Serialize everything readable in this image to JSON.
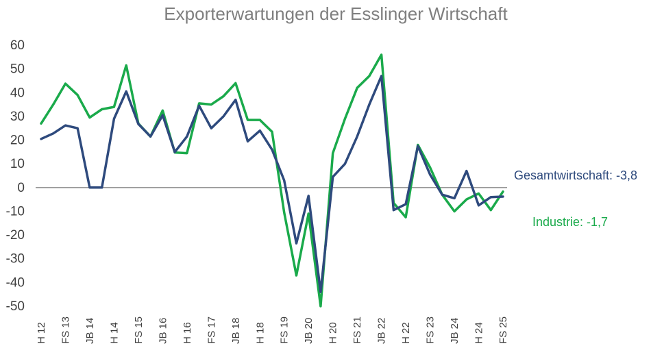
{
  "chart_data": {
    "type": "line",
    "title": "Exporterwartungen der Esslinger Wirtschaft",
    "xlabel": "",
    "ylabel": "",
    "ylim": [
      -50,
      60
    ],
    "yticks": [
      60,
      50,
      40,
      30,
      20,
      10,
      0,
      -10,
      -20,
      -30,
      -40,
      -50
    ],
    "ytick_labels": [
      "60",
      "50",
      "40",
      "30",
      "20",
      "10",
      "0",
      "-10",
      "-20",
      "-30",
      "-40",
      "-50"
    ],
    "grid": false,
    "legend": "none",
    "x_tick_labels": [
      "H 12",
      "FS 13",
      "JB 14",
      "H 14",
      "FS 15",
      "JB 16",
      "H 16",
      "FS 17",
      "JB 18",
      "H 18",
      "FS 19",
      "JB 20",
      "H 20",
      "FS 21",
      "JB 22",
      "H 22",
      "FS 23",
      "JB 24",
      "H 24",
      "FS 25"
    ],
    "x_tick_every": 2,
    "series": [
      {
        "name": "Gesamtwirtschaft",
        "label": "Gesamtwirtschaft: -3,8",
        "color": "#2e4a7d",
        "values": [
          20.5,
          22.8,
          26.2,
          25,
          0,
          0,
          29,
          40.5,
          26.8,
          21.5,
          30.5,
          15,
          21.5,
          34.5,
          25,
          30,
          37,
          19.5,
          24,
          16,
          3,
          -23.5,
          -3.5,
          -44,
          4.5,
          10,
          21.5,
          35,
          47,
          -9.5,
          -7,
          17.5,
          5.5,
          -3,
          -4.5,
          7,
          -7.5,
          -4,
          -3.8
        ]
      },
      {
        "name": "Industrie",
        "label": "Industrie: -1,7",
        "color": "#1aaa4b",
        "values": [
          27,
          35,
          43.8,
          39,
          29.5,
          33,
          34,
          51.5,
          27,
          21.5,
          32.5,
          14.8,
          14.5,
          35.5,
          35,
          38.5,
          44,
          28.5,
          28.5,
          23.5,
          -10.5,
          -37,
          -11,
          -50,
          14.5,
          29,
          42,
          47,
          56,
          -6.5,
          -12.5,
          18,
          8.5,
          -3,
          -10,
          -5,
          -2.5,
          -9.5,
          -1.7
        ]
      }
    ]
  }
}
